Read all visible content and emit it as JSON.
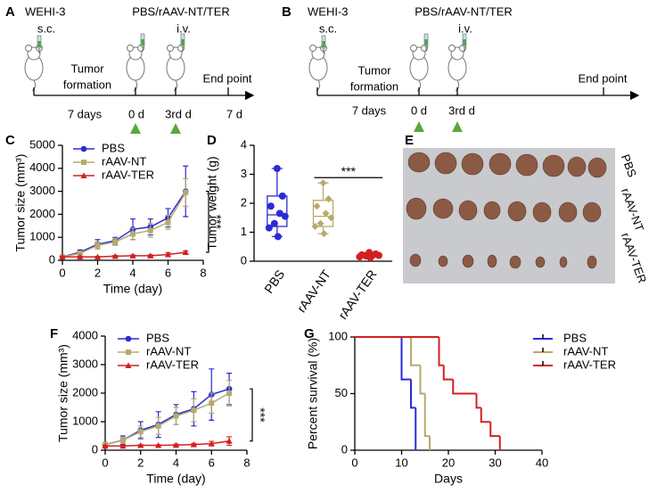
{
  "panel_a": {
    "letter": "A",
    "cell_line": "WEHI-3",
    "route_sc": "s.c.",
    "treatment": "PBS/rAAV-NT/TER",
    "route_iv": "i.v.",
    "phase_line1": "Tumor",
    "phase_line2": "formation",
    "end": "End point",
    "timeline": [
      "7 days",
      "0 d",
      "3rd d",
      "7 d"
    ]
  },
  "panel_b": {
    "letter": "B",
    "cell_line": "WEHI-3",
    "route_sc": "s.c.",
    "treatment": "PBS/rAAV-NT/TER",
    "route_iv": "i.v.",
    "phase_line1": "Tumor",
    "phase_line2": "formation",
    "end": "End point",
    "timeline": [
      "7 days",
      "0 d",
      "3rd d"
    ]
  },
  "panel_e": {
    "letter": "E",
    "rows": [
      "PBS",
      "rAAV-NT",
      "rAAV-TER"
    ]
  },
  "chart_data": [
    {
      "type": "line",
      "letter": "C",
      "xlabel": "Time (day)",
      "ylabel": "Tumor size (mm³)",
      "annotation": "***",
      "x": [
        0,
        1,
        2,
        3,
        4,
        5,
        6,
        7
      ],
      "xlim": [
        0,
        8
      ],
      "xticks": [
        0,
        2,
        4,
        6,
        8
      ],
      "ylim": [
        0,
        5000
      ],
      "yticks": [
        0,
        1000,
        2000,
        3000,
        4000,
        5000
      ],
      "series": [
        {
          "name": "PBS",
          "color": "#2b2bd6",
          "marker": "circle",
          "values": [
            150,
            350,
            700,
            850,
            1350,
            1450,
            1850,
            3000
          ],
          "errors": [
            50,
            100,
            200,
            150,
            450,
            350,
            400,
            1100
          ]
        },
        {
          "name": "rAAV-NT",
          "color": "#b5ab6c",
          "marker": "square",
          "values": [
            150,
            300,
            650,
            800,
            1150,
            1300,
            1650,
            2950
          ],
          "errors": [
            50,
            100,
            150,
            150,
            250,
            300,
            300,
            600
          ]
        },
        {
          "name": "rAAV-TER",
          "color": "#d42020",
          "marker": "triangle",
          "values": [
            150,
            150,
            150,
            180,
            200,
            200,
            250,
            350
          ],
          "errors": [
            20,
            20,
            20,
            30,
            30,
            40,
            80,
            60
          ]
        }
      ]
    },
    {
      "type": "box",
      "letter": "D",
      "ylabel": "Tumor weight (g)",
      "annotation": "***",
      "categories": [
        "PBS",
        "rAAV-NT",
        "rAAV-TER"
      ],
      "ylim": [
        0,
        4
      ],
      "yticks": [
        0,
        1,
        2,
        3,
        4
      ],
      "boxes": [
        {
          "color": "#2b2bd6",
          "min": 0.85,
          "q1": 1.2,
          "median": 1.6,
          "q3": 2.25,
          "max": 3.2,
          "points": [
            3.2,
            2.25,
            1.9,
            1.65,
            1.55,
            1.3,
            1.15,
            0.85
          ]
        },
        {
          "color": "#b5ab6c",
          "min": 0.95,
          "q1": 1.2,
          "median": 1.55,
          "q3": 2.1,
          "max": 2.7,
          "points": [
            2.7,
            2.15,
            1.9,
            1.65,
            1.5,
            1.3,
            1.2,
            0.95
          ]
        },
        {
          "color": "#d42020",
          "min": 0.12,
          "q1": 0.16,
          "median": 0.2,
          "q3": 0.25,
          "max": 0.3,
          "points": [
            0.3,
            0.25,
            0.22,
            0.2,
            0.2,
            0.18,
            0.15,
            0.12
          ]
        }
      ]
    },
    {
      "type": "line",
      "letter": "F",
      "xlabel": "Time (day)",
      "ylabel": "Tumor size (mm³)",
      "annotation": "***",
      "x": [
        0,
        1,
        2,
        3,
        4,
        5,
        6,
        7
      ],
      "xlim": [
        0,
        8
      ],
      "xticks": [
        0,
        2,
        4,
        6,
        8
      ],
      "ylim": [
        0,
        4000
      ],
      "yticks": [
        0,
        1000,
        2000,
        3000,
        4000
      ],
      "series": [
        {
          "name": "PBS",
          "color": "#2b2bd6",
          "marker": "circle",
          "values": [
            200,
            350,
            700,
            900,
            1250,
            1450,
            1950,
            2150
          ],
          "errors": [
            50,
            150,
            300,
            450,
            350,
            600,
            900,
            550
          ]
        },
        {
          "name": "rAAV-NT",
          "color": "#b5ab6c",
          "marker": "square",
          "values": [
            200,
            350,
            650,
            850,
            1200,
            1400,
            1650,
            2000
          ],
          "errors": [
            50,
            100,
            200,
            300,
            300,
            400,
            350,
            450
          ]
        },
        {
          "name": "rAAV-TER",
          "color": "#d42020",
          "marker": "triangle",
          "values": [
            150,
            150,
            170,
            170,
            180,
            200,
            230,
            320
          ],
          "errors": [
            20,
            20,
            20,
            20,
            30,
            40,
            80,
            150
          ]
        }
      ]
    },
    {
      "type": "step",
      "letter": "G",
      "xlabel": "Days",
      "ylabel": "Percent survival (%)",
      "xlim": [
        0,
        40
      ],
      "xticks": [
        0,
        10,
        20,
        30,
        40
      ],
      "ylim": [
        0,
        100
      ],
      "yticks": [
        0,
        50,
        100
      ],
      "series": [
        {
          "name": "PBS",
          "color": "#2b2bd6",
          "x": [
            0,
            10,
            12,
            13
          ],
          "values": [
            100,
            62.5,
            37.5,
            0
          ]
        },
        {
          "name": "rAAV-NT",
          "color": "#b5ab6c",
          "x": [
            0,
            12,
            14,
            15,
            16
          ],
          "values": [
            100,
            75,
            50,
            12.5,
            0
          ]
        },
        {
          "name": "rAAV-TER",
          "color": "#d42020",
          "x": [
            0,
            18,
            19,
            21,
            26,
            27,
            29,
            31
          ],
          "values": [
            100,
            75,
            62.5,
            50,
            37.5,
            25,
            12.5,
            0
          ]
        }
      ]
    }
  ]
}
